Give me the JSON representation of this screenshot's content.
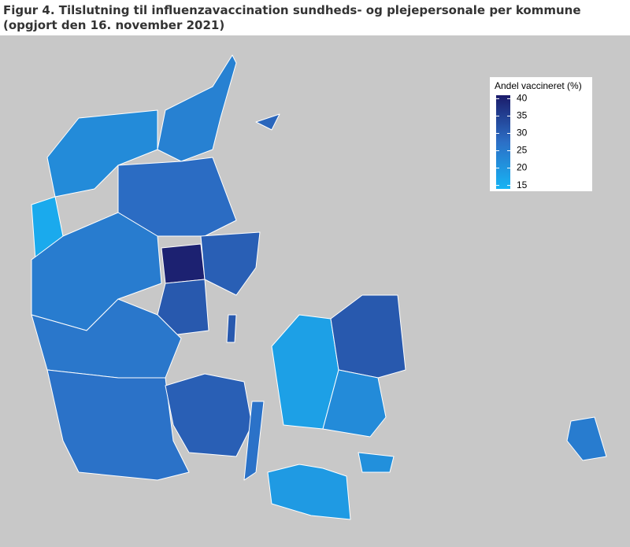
{
  "title": "Figur 4. Tilslutning til influenzavaccination sundheds- og plejepersonale per kommune (opgjort den 16. november 2021)",
  "legend": {
    "title": "Andel vaccineret (%)",
    "range": [
      14,
      41
    ],
    "ticks": [
      15,
      20,
      25,
      30,
      35,
      40
    ],
    "colors": [
      "#17b4f4",
      "#2c6fc6",
      "#1b1b6a"
    ]
  },
  "regions": [
    24,
    22,
    28,
    16,
    40,
    30,
    25,
    31,
    26,
    27,
    30,
    27,
    18,
    31,
    22,
    19,
    21,
    25,
    29,
    31
  ]
}
